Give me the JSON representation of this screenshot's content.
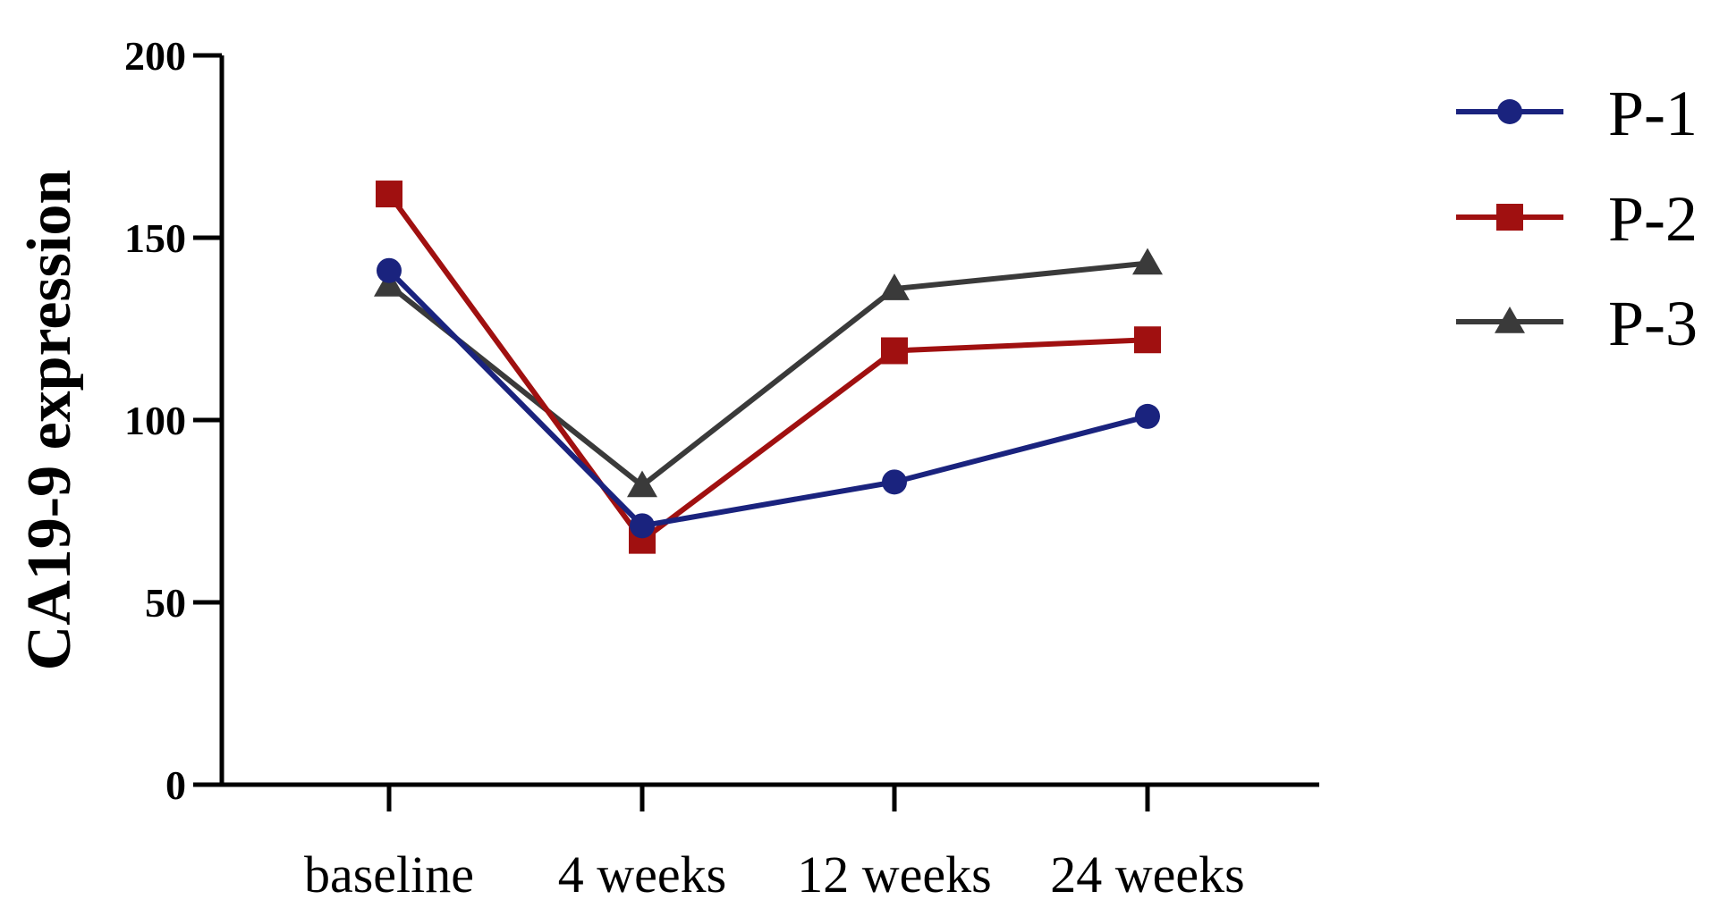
{
  "chart_data": {
    "type": "line",
    "title": "",
    "xlabel": "",
    "ylabel": "CA19-9 expression",
    "categories": [
      "baseline",
      "4 weeks",
      "12 weeks",
      "24 weeks"
    ],
    "ylim": [
      0,
      200
    ],
    "yticks": [
      0,
      50,
      100,
      150,
      200
    ],
    "grid": false,
    "legend_position": "right",
    "series": [
      {
        "name": "P-1",
        "color": "#1a237e",
        "marker": "circle",
        "values": [
          141,
          71,
          83,
          101
        ]
      },
      {
        "name": "P-2",
        "color": "#a01010",
        "marker": "square",
        "values": [
          162,
          67,
          119,
          122
        ]
      },
      {
        "name": "P-3",
        "color": "#3a3a3a",
        "marker": "triangle",
        "values": [
          137,
          82,
          136,
          143
        ]
      }
    ]
  }
}
